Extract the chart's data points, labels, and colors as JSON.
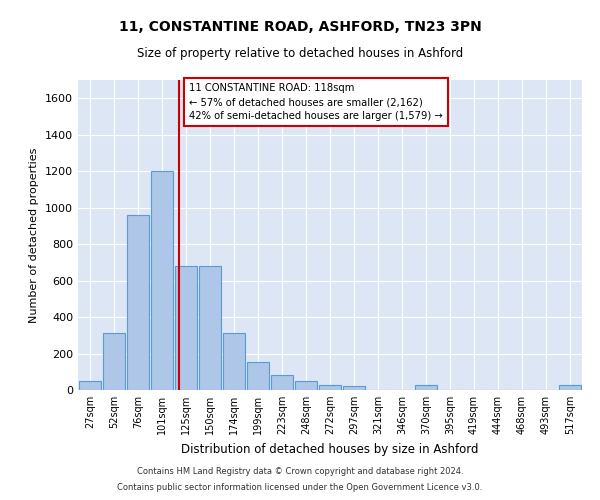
{
  "title_line1": "11, CONSTANTINE ROAD, ASHFORD, TN23 3PN",
  "title_line2": "Size of property relative to detached houses in Ashford",
  "xlabel": "Distribution of detached houses by size in Ashford",
  "ylabel": "Number of detached properties",
  "footer_line1": "Contains HM Land Registry data © Crown copyright and database right 2024.",
  "footer_line2": "Contains public sector information licensed under the Open Government Licence v3.0.",
  "annotation_line1": "11 CONSTANTINE ROAD: 118sqm",
  "annotation_line2": "← 57% of detached houses are smaller (2,162)",
  "annotation_line3": "42% of semi-detached houses are larger (1,579) →",
  "bar_color": "#aec6e8",
  "bar_edge_color": "#5b9bd5",
  "highlight_color": "#cc0000",
  "bg_color": "#dce6f5",
  "categories": [
    "27sqm",
    "52sqm",
    "76sqm",
    "101sqm",
    "125sqm",
    "150sqm",
    "174sqm",
    "199sqm",
    "223sqm",
    "248sqm",
    "272sqm",
    "297sqm",
    "321sqm",
    "346sqm",
    "370sqm",
    "395sqm",
    "419sqm",
    "444sqm",
    "468sqm",
    "493sqm",
    "517sqm"
  ],
  "values": [
    50,
    310,
    960,
    1200,
    680,
    680,
    310,
    155,
    80,
    50,
    30,
    20,
    0,
    0,
    25,
    0,
    0,
    0,
    0,
    0,
    25
  ],
  "ylim": [
    0,
    1700
  ],
  "yticks": [
    0,
    200,
    400,
    600,
    800,
    1000,
    1200,
    1400,
    1600
  ],
  "red_line_x": 3.72
}
